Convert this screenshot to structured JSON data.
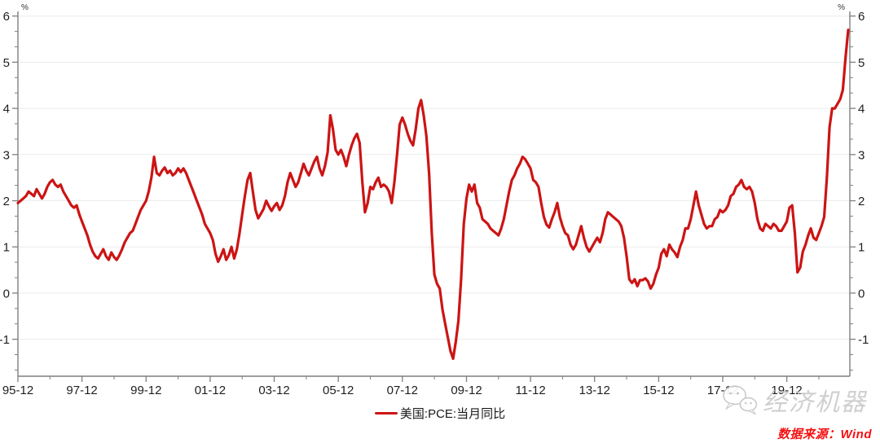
{
  "chart_data": {
    "type": "line",
    "title": "",
    "y_unit": "%",
    "grid": "horizontal",
    "legend_position": "bottom-center",
    "y_axis_range": [
      -1.8,
      6.1
    ],
    "y_ticks": [
      -1,
      0,
      1,
      2,
      3,
      4,
      5,
      6
    ],
    "x_tick_labels": [
      "95-12",
      "97-12",
      "99-12",
      "01-12",
      "03-12",
      "05-12",
      "07-12",
      "09-12",
      "11-12",
      "13-12",
      "15-12",
      "17-12",
      "19-12"
    ],
    "x_major_every_months": 24,
    "series": [
      {
        "name": "美国:PCE:当月同比",
        "color": "#cc1414",
        "start": "1995-12",
        "end": "2021-11",
        "frequency": "monthly",
        "values": [
          1.95,
          2.0,
          2.05,
          2.1,
          2.2,
          2.15,
          2.1,
          2.25,
          2.15,
          2.05,
          2.15,
          2.3,
          2.4,
          2.45,
          2.35,
          2.3,
          2.35,
          2.2,
          2.1,
          2.0,
          1.9,
          1.85,
          1.9,
          1.7,
          1.55,
          1.4,
          1.25,
          1.05,
          0.9,
          0.8,
          0.75,
          0.85,
          0.95,
          0.8,
          0.72,
          0.88,
          0.78,
          0.72,
          0.82,
          0.95,
          1.1,
          1.2,
          1.3,
          1.35,
          1.5,
          1.65,
          1.8,
          1.9,
          2.0,
          2.2,
          2.5,
          2.95,
          2.6,
          2.55,
          2.65,
          2.72,
          2.6,
          2.65,
          2.55,
          2.6,
          2.7,
          2.62,
          2.7,
          2.6,
          2.45,
          2.3,
          2.15,
          2.0,
          1.85,
          1.7,
          1.5,
          1.4,
          1.3,
          1.15,
          0.85,
          0.68,
          0.8,
          0.95,
          0.72,
          0.82,
          1.0,
          0.75,
          0.95,
          1.3,
          1.7,
          2.1,
          2.45,
          2.6,
          2.2,
          1.8,
          1.62,
          1.72,
          1.82,
          2.0,
          1.88,
          1.78,
          1.88,
          1.95,
          1.8,
          1.9,
          2.1,
          2.4,
          2.6,
          2.45,
          2.3,
          2.4,
          2.6,
          2.8,
          2.65,
          2.55,
          2.7,
          2.85,
          2.95,
          2.7,
          2.55,
          2.75,
          3.05,
          3.85,
          3.55,
          3.1,
          3.0,
          3.1,
          2.95,
          2.75,
          3.0,
          3.2,
          3.35,
          3.45,
          3.25,
          2.4,
          1.75,
          1.95,
          2.3,
          2.25,
          2.4,
          2.5,
          2.3,
          2.35,
          2.3,
          2.2,
          1.95,
          2.4,
          3.0,
          3.65,
          3.8,
          3.65,
          3.45,
          3.3,
          3.2,
          3.55,
          4.0,
          4.18,
          3.85,
          3.4,
          2.6,
          1.3,
          0.4,
          0.2,
          0.1,
          -0.35,
          -0.65,
          -0.95,
          -1.25,
          -1.42,
          -1.05,
          -0.6,
          0.3,
          1.5,
          2.05,
          2.35,
          2.2,
          2.35,
          1.95,
          1.85,
          1.6,
          1.55,
          1.5,
          1.4,
          1.35,
          1.3,
          1.25,
          1.4,
          1.6,
          1.9,
          2.2,
          2.45,
          2.55,
          2.7,
          2.8,
          2.95,
          2.9,
          2.8,
          2.7,
          2.45,
          2.4,
          2.3,
          1.95,
          1.65,
          1.48,
          1.42,
          1.6,
          1.75,
          1.95,
          1.65,
          1.45,
          1.3,
          1.25,
          1.05,
          0.95,
          1.05,
          1.25,
          1.45,
          1.2,
          1.0,
          0.9,
          1.0,
          1.1,
          1.2,
          1.1,
          1.3,
          1.6,
          1.75,
          1.7,
          1.65,
          1.6,
          1.55,
          1.45,
          1.2,
          0.8,
          0.3,
          0.22,
          0.3,
          0.15,
          0.28,
          0.28,
          0.32,
          0.25,
          0.1,
          0.2,
          0.4,
          0.55,
          0.85,
          0.95,
          0.8,
          1.05,
          0.95,
          0.88,
          0.78,
          1.0,
          1.15,
          1.4,
          1.4,
          1.6,
          1.9,
          2.2,
          1.9,
          1.7,
          1.5,
          1.4,
          1.45,
          1.45,
          1.6,
          1.65,
          1.8,
          1.75,
          1.8,
          1.9,
          2.1,
          2.15,
          2.3,
          2.35,
          2.45,
          2.3,
          2.25,
          2.3,
          2.2,
          1.95,
          1.6,
          1.4,
          1.35,
          1.5,
          1.45,
          1.4,
          1.5,
          1.45,
          1.35,
          1.35,
          1.45,
          1.55,
          1.85,
          1.9,
          1.3,
          0.45,
          0.55,
          0.9,
          1.05,
          1.25,
          1.4,
          1.2,
          1.15,
          1.3,
          1.45,
          1.65,
          2.5,
          3.6,
          4.0,
          4.0,
          4.1,
          4.2,
          4.4,
          5.1,
          5.7
        ]
      }
    ]
  },
  "legend": {
    "label": "美国:PCE:当月同比",
    "swatch_color": "#cc1414"
  },
  "source": {
    "text": "数据来源：Wind",
    "color": "#f51111"
  },
  "watermark": {
    "text": "经济机器",
    "icon": "wechat-icon",
    "color": "#cbcbcb"
  },
  "axes": {
    "left_unit": "%",
    "right_unit": "%"
  }
}
